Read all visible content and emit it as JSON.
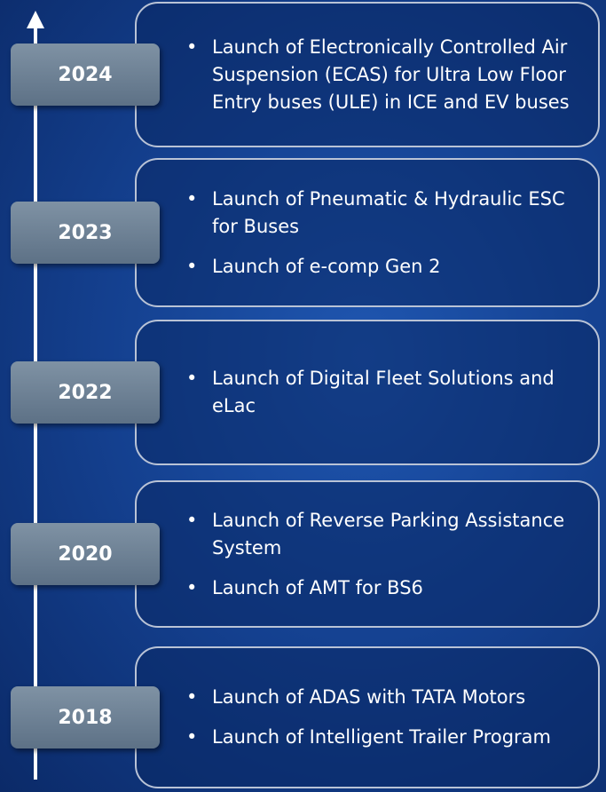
{
  "timeline": [
    {
      "year": "2024",
      "items": [
        "Launch of Electronically Controlled Air Suspension (ECAS) for Ultra Low Floor Entry buses (ULE) in ICE and EV buses"
      ]
    },
    {
      "year": "2023",
      "items": [
        "Launch of Pneumatic & Hydraulic ESC for Buses",
        "Launch of e-comp Gen 2"
      ]
    },
    {
      "year": "2022",
      "items": [
        "Launch of Digital Fleet Solutions and eLac"
      ]
    },
    {
      "year": "2020",
      "items": [
        "Launch of Reverse Parking Assistance System",
        "Launch of AMT for BS6"
      ]
    },
    {
      "year": "2018",
      "items": [
        "Launch of ADAS with TATA Motors",
        "Launch of Intelligent Trailer Program"
      ]
    }
  ]
}
